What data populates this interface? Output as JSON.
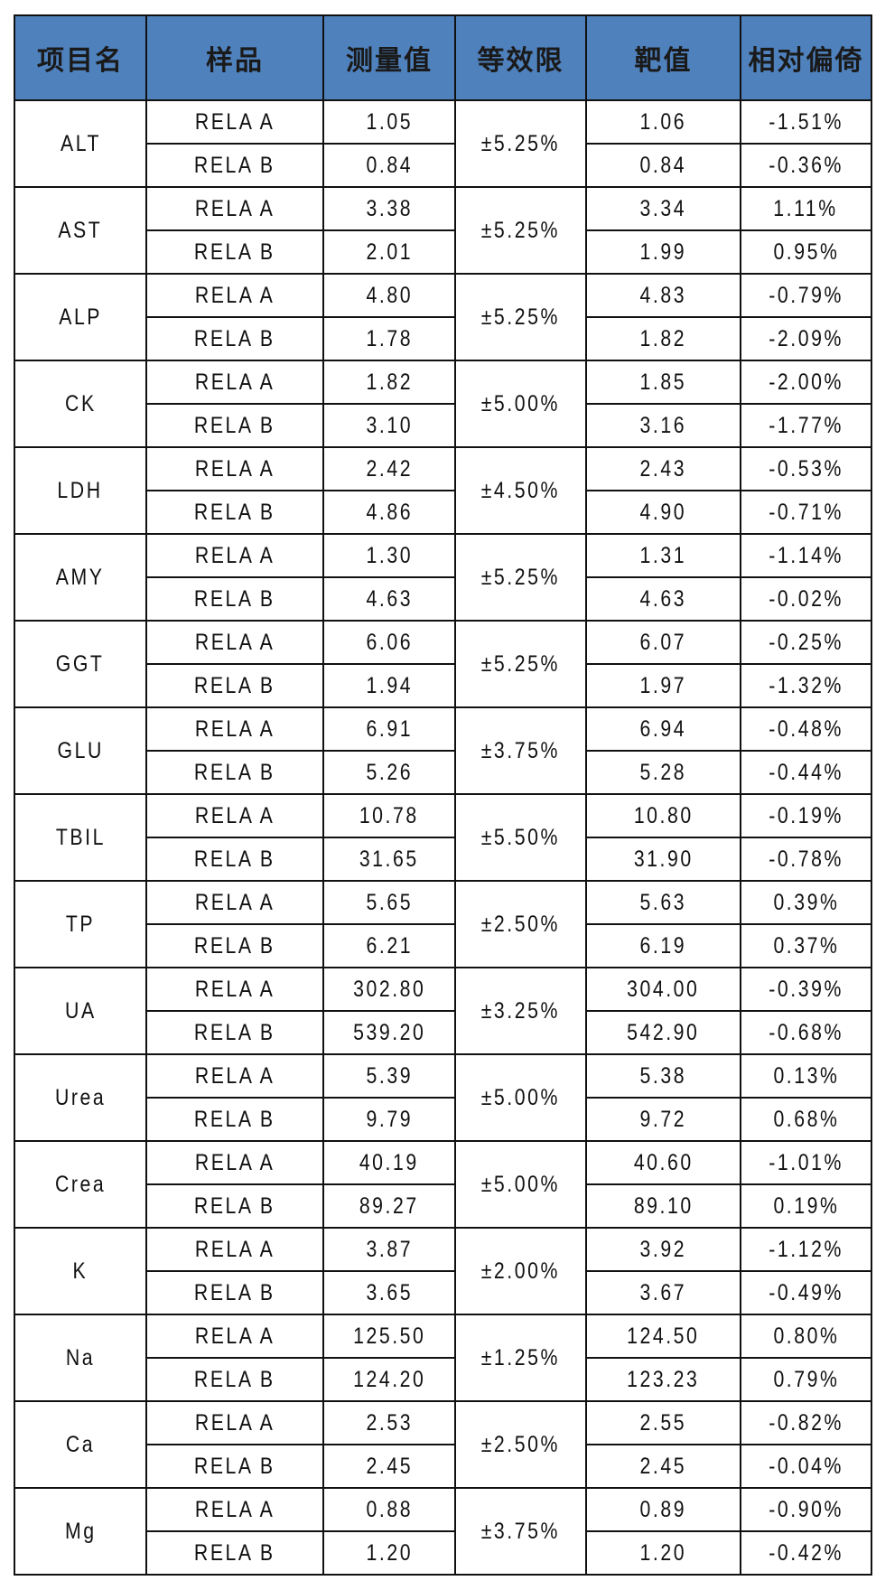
{
  "header": [
    "项目名",
    "样品",
    "测量值",
    "等效限",
    "靶值",
    "相对偏倚"
  ],
  "header_color": "#4f81bd",
  "groups": [
    {
      "item": "ALT",
      "limit": "±5.25%",
      "rows": [
        [
          "RELA A",
          "1.05",
          "1.06",
          "-1.51%"
        ],
        [
          "RELA B",
          "0.84",
          "0.84",
          "-0.36%"
        ]
      ]
    },
    {
      "item": "AST",
      "limit": "±5.25%",
      "rows": [
        [
          "RELA A",
          "3.38",
          "3.34",
          "1.11%"
        ],
        [
          "RELA B",
          "2.01",
          "1.99",
          "0.95%"
        ]
      ]
    },
    {
      "item": "ALP",
      "limit": "±5.25%",
      "rows": [
        [
          "RELA A",
          "4.80",
          "4.83",
          "-0.79%"
        ],
        [
          "RELA B",
          "1.78",
          "1.82",
          "-2.09%"
        ]
      ]
    },
    {
      "item": "CK",
      "limit": "±5.00%",
      "rows": [
        [
          "RELA A",
          "1.82",
          "1.85",
          "-2.00%"
        ],
        [
          "RELA B",
          "3.10",
          "3.16",
          "-1.77%"
        ]
      ]
    },
    {
      "item": "LDH",
      "limit": "±4.50%",
      "rows": [
        [
          "RELA A",
          "2.42",
          "2.43",
          "-0.53%"
        ],
        [
          "RELA B",
          "4.86",
          "4.90",
          "-0.71%"
        ]
      ]
    },
    {
      "item": "AMY",
      "limit": "±5.25%",
      "rows": [
        [
          "RELA A",
          "1.30",
          "1.31",
          "-1.14%"
        ],
        [
          "RELA B",
          "4.63",
          "4.63",
          "-0.02%"
        ]
      ]
    },
    {
      "item": "GGT",
      "limit": "±5.25%",
      "rows": [
        [
          "RELA A",
          "6.06",
          "6.07",
          "-0.25%"
        ],
        [
          "RELA B",
          "1.94",
          "1.97",
          "-1.32%"
        ]
      ]
    },
    {
      "item": "GLU",
      "limit": "±3.75%",
      "rows": [
        [
          "RELA A",
          "6.91",
          "6.94",
          "-0.48%"
        ],
        [
          "RELA B",
          "5.26",
          "5.28",
          "-0.44%"
        ]
      ]
    },
    {
      "item": "TBIL",
      "limit": "±5.50%",
      "rows": [
        [
          "RELA A",
          "10.78",
          "10.80",
          "-0.19%"
        ],
        [
          "RELA B",
          "31.65",
          "31.90",
          "-0.78%"
        ]
      ]
    },
    {
      "item": "TP",
      "limit": "±2.50%",
      "rows": [
        [
          "RELA A",
          "5.65",
          "5.63",
          "0.39%"
        ],
        [
          "RELA B",
          "6.21",
          "6.19",
          "0.37%"
        ]
      ]
    },
    {
      "item": "UA",
      "limit": "±3.25%",
      "rows": [
        [
          "RELA A",
          "302.80",
          "304.00",
          "-0.39%"
        ],
        [
          "RELA B",
          "539.20",
          "542.90",
          "-0.68%"
        ]
      ]
    },
    {
      "item": "Urea",
      "limit": "±5.00%",
      "rows": [
        [
          "RELA A",
          "5.39",
          "5.38",
          "0.13%"
        ],
        [
          "RELA B",
          "9.79",
          "9.72",
          "0.68%"
        ]
      ]
    },
    {
      "item": "Crea",
      "limit": "±5.00%",
      "rows": [
        [
          "RELA A",
          "40.19",
          "40.60",
          "-1.01%"
        ],
        [
          "RELA B",
          "89.27",
          "89.10",
          "0.19%"
        ]
      ]
    },
    {
      "item": "K",
      "limit": "±2.00%",
      "rows": [
        [
          "RELA A",
          "3.87",
          "3.92",
          "-1.12%"
        ],
        [
          "RELA B",
          "3.65",
          "3.67",
          "-0.49%"
        ]
      ]
    },
    {
      "item": "Na",
      "limit": "±1.25%",
      "rows": [
        [
          "RELA A",
          "125.50",
          "124.50",
          "0.80%"
        ],
        [
          "RELA B",
          "124.20",
          "123.23",
          "0.79%"
        ]
      ]
    },
    {
      "item": "Ca",
      "limit": "±2.50%",
      "rows": [
        [
          "RELA A",
          "2.53",
          "2.55",
          "-0.82%"
        ],
        [
          "RELA B",
          "2.45",
          "2.45",
          "-0.04%"
        ]
      ]
    },
    {
      "item": "Mg",
      "limit": "±3.75%",
      "rows": [
        [
          "RELA A",
          "0.88",
          "0.89",
          "-0.90%"
        ],
        [
          "RELA B",
          "1.20",
          "1.20",
          "-0.42%"
        ]
      ]
    }
  ]
}
